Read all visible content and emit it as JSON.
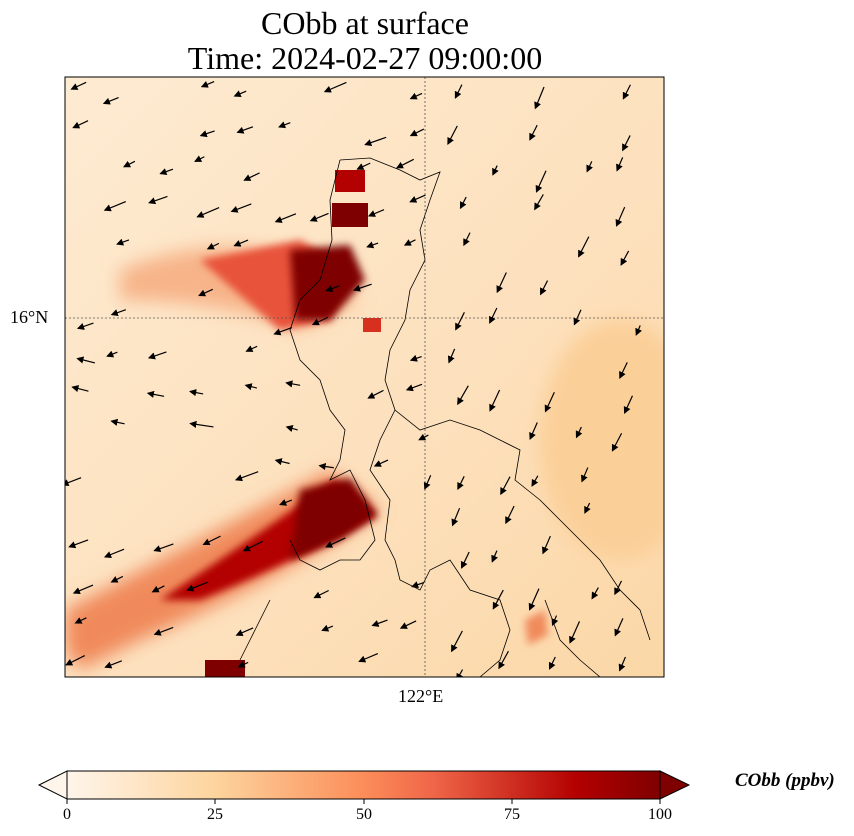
{
  "title": {
    "line1": "CObb at surface",
    "line2": "Time: 2024-02-27 09:00:00"
  },
  "map": {
    "lat_labels": [
      "16°N"
    ],
    "lon_labels": [
      "122°E"
    ],
    "variable": "CObb",
    "overlay": "wind vectors",
    "coastlines": true
  },
  "colorbar": {
    "label": "CObb (ppbv)",
    "ticks": [
      "0",
      "25",
      "50",
      "75",
      "100"
    ],
    "range": [
      0,
      100
    ],
    "extend": "both",
    "colors": [
      "#fff5eb",
      "#fdd49e",
      "#fc8d59",
      "#b30000",
      "#7f0000"
    ]
  }
}
